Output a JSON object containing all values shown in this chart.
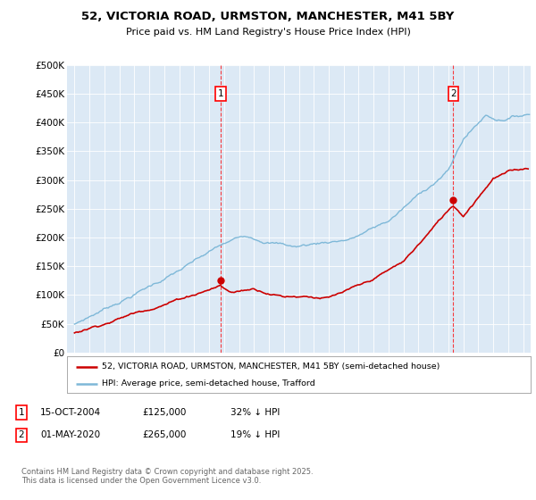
{
  "title": "52, VICTORIA ROAD, URMSTON, MANCHESTER, M41 5BY",
  "subtitle": "Price paid vs. HM Land Registry's House Price Index (HPI)",
  "plot_bg_color": "#dce9f5",
  "ylabel": "",
  "ylim": [
    0,
    500000
  ],
  "yticks": [
    0,
    50000,
    100000,
    150000,
    200000,
    250000,
    300000,
    350000,
    400000,
    450000,
    500000
  ],
  "ytick_labels": [
    "£0",
    "£50K",
    "£100K",
    "£150K",
    "£200K",
    "£250K",
    "£300K",
    "£350K",
    "£400K",
    "£450K",
    "£500K"
  ],
  "hpi_color": "#7eb8d8",
  "price_color": "#cc0000",
  "sale1_x": 2004.79,
  "sale1_y": 125000,
  "sale1_label": "1",
  "sale2_x": 2020.33,
  "sale2_y": 265000,
  "sale2_label": "2",
  "legend_label_price": "52, VICTORIA ROAD, URMSTON, MANCHESTER, M41 5BY (semi-detached house)",
  "legend_label_hpi": "HPI: Average price, semi-detached house, Trafford",
  "footnote": "Contains HM Land Registry data © Crown copyright and database right 2025.\nThis data is licensed under the Open Government Licence v3.0.",
  "xlim_start": 1994.5,
  "xlim_end": 2025.5,
  "xticks": [
    1995,
    1996,
    1997,
    1998,
    1999,
    2000,
    2001,
    2002,
    2003,
    2004,
    2005,
    2006,
    2007,
    2008,
    2009,
    2010,
    2011,
    2012,
    2013,
    2014,
    2015,
    2016,
    2017,
    2018,
    2019,
    2020,
    2021,
    2022,
    2023,
    2024,
    2025
  ]
}
